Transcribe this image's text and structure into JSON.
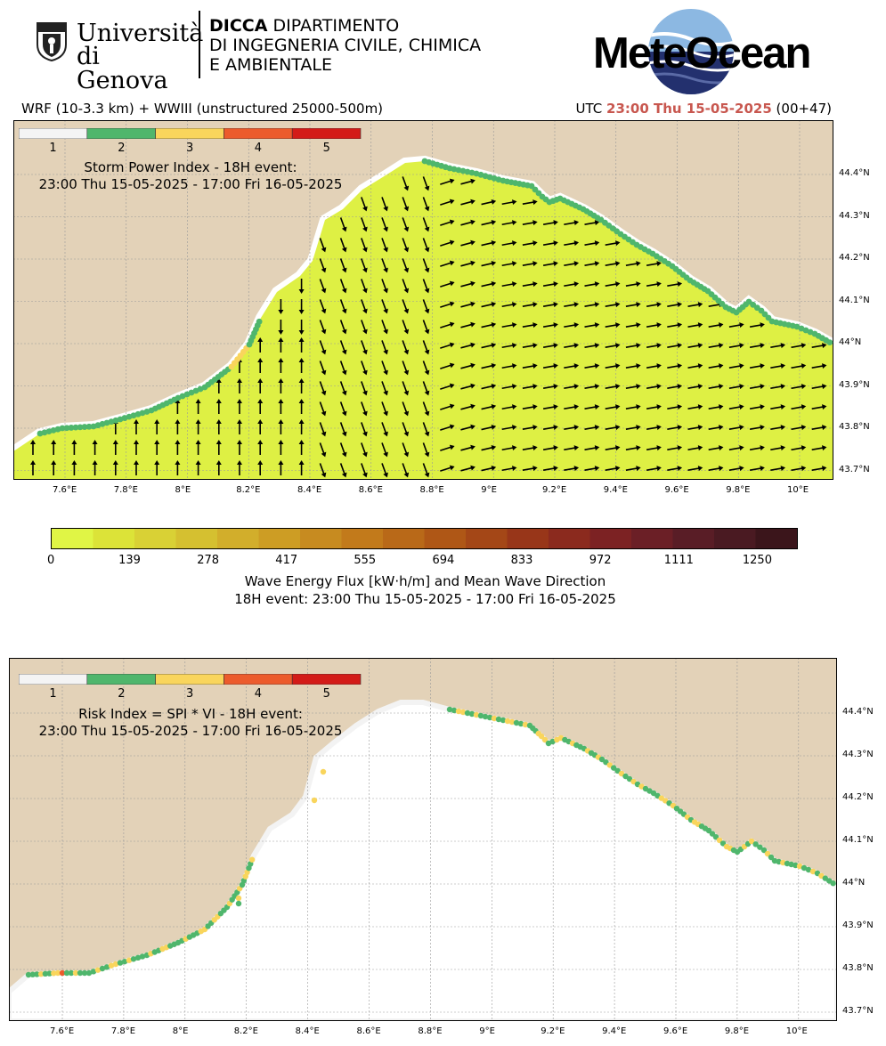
{
  "header": {
    "university_line1": "Università",
    "university_line2": "di Genova",
    "dept_acronym": "DICCA",
    "dept_line1": "DIPARTIMENTO",
    "dept_line2": "DI INGEGNERIA CIVILE, CHIMICA",
    "dept_line3": "E AMBIENTALE",
    "brand": "MeteOcean"
  },
  "model_info": "WRF (10-3.3 km) + WWIII (unstructured 25000-500m)",
  "utc_label": "UTC",
  "utc_time": "23:00 Thu 15-05-2025",
  "forecast_step": "(00+47)",
  "colors": {
    "land": "#e3d2b8",
    "sea_flux": "#def044",
    "index_1": "#f4f4f4",
    "index_2": "#4fb66c",
    "index_3": "#f9d55c",
    "index_4": "#ec5b2c",
    "index_5": "#d31b18"
  },
  "index_legend": {
    "labels": [
      "1",
      "2",
      "3",
      "4",
      "5"
    ]
  },
  "map1": {
    "title_line1": "Storm Power Index - 18H event:",
    "title_line2": "23:00 Thu 15-05-2025 - 17:00 Fri 16-05-2025"
  },
  "map2": {
    "title_line1": "Risk Index = SPI * VI - 18H event:",
    "title_line2": "23:00 Thu 15-05-2025 - 17:00 Fri 16-05-2025"
  },
  "lon_ticks": [
    "7.6°E",
    "7.8°E",
    "8°E",
    "8.2°E",
    "8.4°E",
    "8.6°E",
    "8.8°E",
    "9°E",
    "9.2°E",
    "9.4°E",
    "9.6°E",
    "9.8°E",
    "10°E"
  ],
  "lat_ticks": [
    "44.4°N",
    "44.3°N",
    "44.2°N",
    "44.1°N",
    "44°N",
    "43.9°N",
    "43.8°N",
    "43.7°N"
  ],
  "flux_colorbar": {
    "tick_labels": [
      "0",
      "139",
      "278",
      "417",
      "555",
      "694",
      "833",
      "972",
      "1111",
      "1250"
    ],
    "colors": [
      "#e0f545",
      "#dce338",
      "#d9d135",
      "#d5c030",
      "#d2ae2b",
      "#cd9d24",
      "#c78b20",
      "#c27a1b",
      "#b96918",
      "#af5716",
      "#a44717",
      "#983619",
      "#8b2a1e",
      "#7c2223",
      "#6b1f26",
      "#591d26",
      "#4a1a22",
      "#3b151b"
    ],
    "title_line1": "Wave Energy Flux [kW·h/m] and Mean Wave Direction",
    "title_line2": "18H event: 23:00 Thu 15-05-2025 - 17:00 Fri 16-05-2025"
  }
}
